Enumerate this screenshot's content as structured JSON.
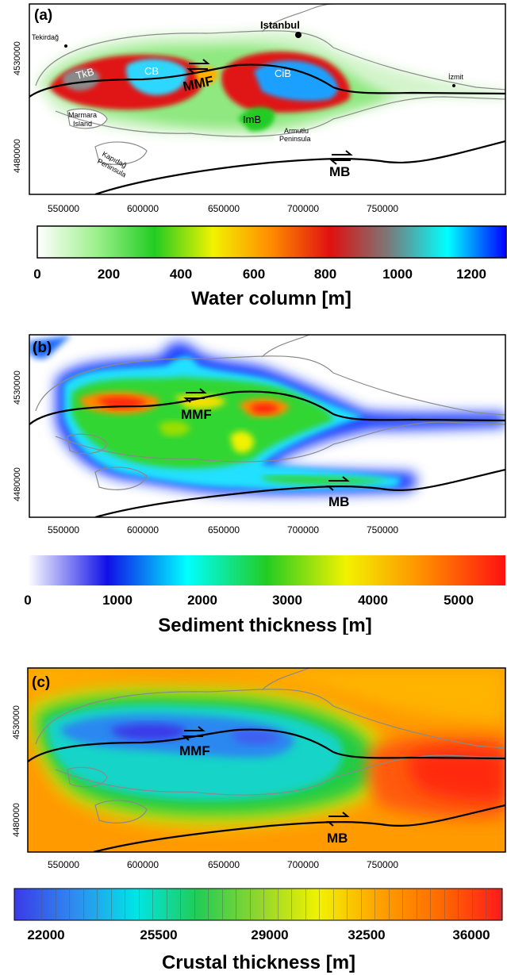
{
  "panels": [
    {
      "label": "(a)",
      "x_ticks": [
        "550000",
        "600000",
        "650000",
        "700000",
        "750000"
      ],
      "y_ticks": [
        "4530000",
        "4480000"
      ],
      "faults": [
        "MMF",
        "MB"
      ],
      "places": {
        "istanbul": "Istanbul",
        "tekirdag": "Tekirdağ",
        "izmit": "İzmit",
        "marmara1": "Marmara",
        "marmara2": "Island",
        "armutlu1": "Armutlu",
        "armutlu2": "Peninsula",
        "kapidag1": "Kapıdağ",
        "kapidag2": "Peninsula"
      },
      "basins": [
        "TkB",
        "CB",
        "CiB",
        "ImB"
      ],
      "colorbar": {
        "title": "Water column [m]",
        "ticks": [
          "0",
          "200",
          "400",
          "600",
          "800",
          "1000",
          "1200"
        ],
        "colors": [
          "#ffffff",
          "#9ef08e",
          "#22cc22",
          "#f2f200",
          "#ff8a00",
          "#e01010",
          "#7a7a7a",
          "#00ffff",
          "#0000ff"
        ]
      }
    },
    {
      "label": "(b)",
      "x_ticks": [
        "550000",
        "600000",
        "650000",
        "700000",
        "750000"
      ],
      "y_ticks": [
        "4530000",
        "4480000"
      ],
      "faults": [
        "MMF",
        "MB"
      ],
      "colorbar": {
        "title": "Sediment thickness [m]",
        "ticks": [
          "0",
          "1000",
          "2000",
          "3000",
          "4000",
          "5000"
        ],
        "colors": [
          "#ffffff",
          "#1010e8",
          "#00ffff",
          "#22cc22",
          "#f2f200",
          "#ff8a00",
          "#ff1010"
        ]
      }
    },
    {
      "label": "(c)",
      "x_ticks": [
        "550000",
        "600000",
        "650000",
        "700000",
        "750000"
      ],
      "y_ticks": [
        "4530000",
        "4480000"
      ],
      "faults": [
        "MMF",
        "MB"
      ],
      "colorbar": {
        "title": "Crustal thickness [m]",
        "ticks": [
          "22000",
          "25500",
          "29000",
          "32500",
          "36000"
        ],
        "colors": [
          "#3a3ae8",
          "#2f8cf0",
          "#00e5e5",
          "#22cc55",
          "#8fd62e",
          "#f2f200",
          "#ffa000",
          "#ff6a00",
          "#ff1a1a"
        ]
      }
    }
  ]
}
